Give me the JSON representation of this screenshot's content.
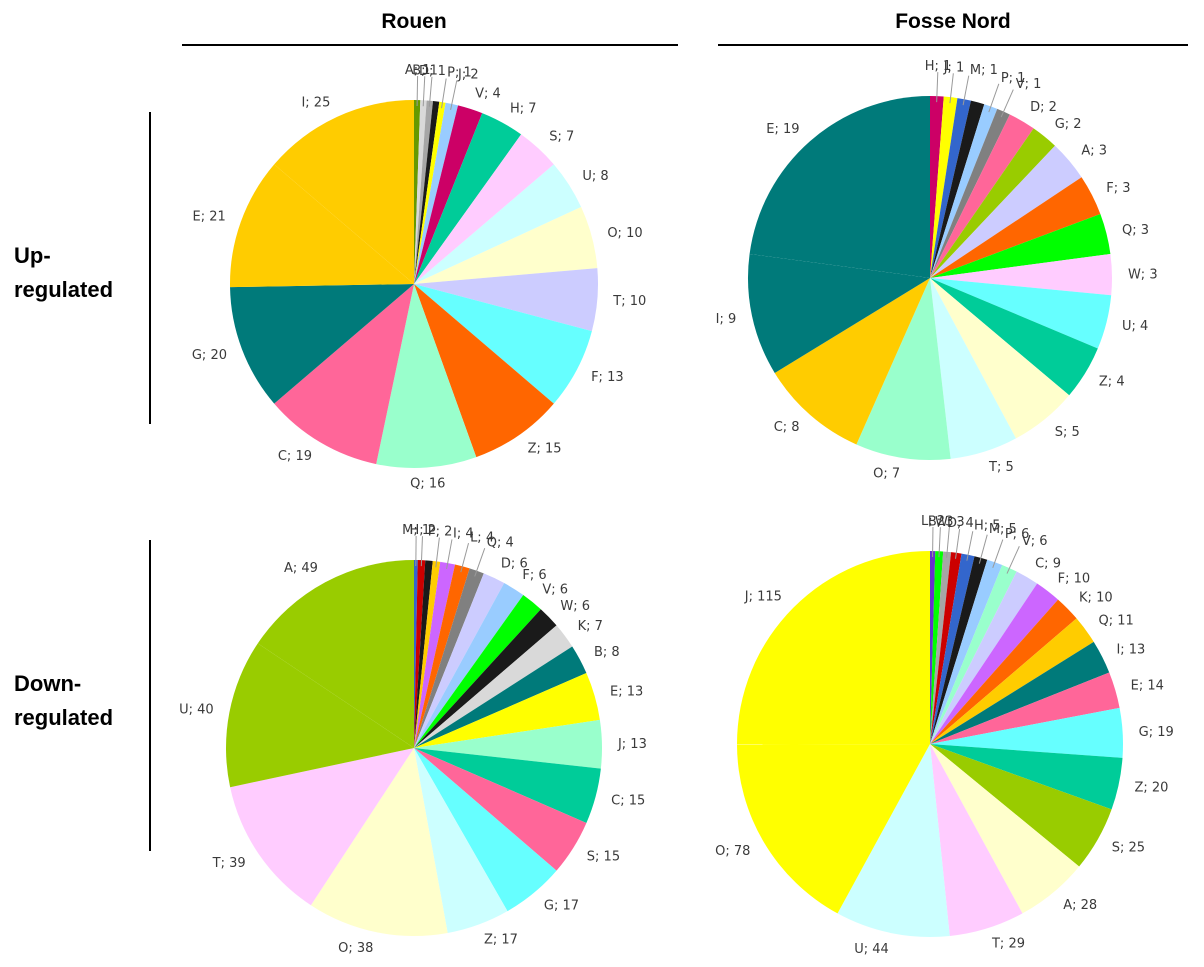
{
  "columns": {
    "left": "Rouen",
    "right": "Fosse Nord"
  },
  "rows": {
    "up_line1": "Up-",
    "up_line2": "regulated",
    "down_line1": "Down-",
    "down_line2": "regulated"
  },
  "colors": {
    "A": "#99CC00",
    "B": "#D9D9D9",
    "C": "#99FFCC",
    "D": "#A6A6A6",
    "E": "#007A7A",
    "F": "#CCCCFF",
    "G": "#FF6699",
    "H": "#CC0000",
    "I": "#FFCC00",
    "J": "#FFFF00",
    "K": "#CC66FF",
    "L": "#6633CC",
    "M": "#3366CC",
    "O": "#CCFFFF",
    "P": "#99CCFF",
    "Q": "#FF6600",
    "S": "#00CC99",
    "T": "#FFFFCC",
    "U": "#FFCCFF",
    "V": "#808080",
    "W": "#00FF00",
    "Z": "#66FFFF",
    "black": "#1A1A1A",
    "olive": "#669900",
    "magenta": "#CC0066"
  },
  "chart_data": [
    {
      "type": "pie",
      "title": "Rouen",
      "row": "Up-regulated",
      "slices": [
        {
          "label": "A; 1",
          "value": 1,
          "color": "olive"
        },
        {
          "label": "B; 1",
          "value": 1,
          "color": "B"
        },
        {
          "label": "D; 1",
          "value": 1,
          "color": "D"
        },
        {
          "label": "",
          "value": 1,
          "color": "black"
        },
        {
          "label": "P; 1",
          "value": 1,
          "color": "J"
        },
        {
          "label": "J; 2",
          "value": 2,
          "color": "P"
        },
        {
          "label": "V; 4",
          "value": 4,
          "color": "magenta"
        },
        {
          "label": "H; 7",
          "value": 7,
          "color": "S"
        },
        {
          "label": "S; 7",
          "value": 7,
          "color": "U"
        },
        {
          "label": "U; 8",
          "value": 8,
          "color": "O"
        },
        {
          "label": "O; 10",
          "value": 10,
          "color": "T"
        },
        {
          "label": "T; 10",
          "value": 10,
          "color": "F"
        },
        {
          "label": "F; 13",
          "value": 13,
          "color": "Z"
        },
        {
          "label": "Z; 15",
          "value": 15,
          "color": "Q"
        },
        {
          "label": "Q; 16",
          "value": 16,
          "color": "C"
        },
        {
          "label": "C; 19",
          "value": 19,
          "color": "G"
        },
        {
          "label": "G; 20",
          "value": 20,
          "color": "E"
        },
        {
          "label": "E; 21",
          "value": 21,
          "color": "I"
        },
        {
          "label": "I; 25",
          "value": 25,
          "color": "I"
        }
      ]
    },
    {
      "type": "pie",
      "title": "Fosse Nord",
      "row": "Up-regulated",
      "slices": [
        {
          "label": "H; 1",
          "value": 1,
          "color": "magenta"
        },
        {
          "label": "J; 1",
          "value": 1,
          "color": "J"
        },
        {
          "label": "M; 1",
          "value": 1,
          "color": "M"
        },
        {
          "label": "",
          "value": 1,
          "color": "black"
        },
        {
          "label": "P; 1",
          "value": 1,
          "color": "P"
        },
        {
          "label": "V; 1",
          "value": 1,
          "color": "V"
        },
        {
          "label": "D; 2",
          "value": 2,
          "color": "G"
        },
        {
          "label": "G; 2",
          "value": 2,
          "color": "A"
        },
        {
          "label": "A; 3",
          "value": 3,
          "color": "F"
        },
        {
          "label": "F; 3",
          "value": 3,
          "color": "Q"
        },
        {
          "label": "Q; 3",
          "value": 3,
          "color": "W"
        },
        {
          "label": "W; 3",
          "value": 3,
          "color": "U"
        },
        {
          "label": "U; 4",
          "value": 4,
          "color": "Z"
        },
        {
          "label": "Z; 4",
          "value": 4,
          "color": "S"
        },
        {
          "label": "S; 5",
          "value": 5,
          "color": "T"
        },
        {
          "label": "T; 5",
          "value": 5,
          "color": "O"
        },
        {
          "label": "O; 7",
          "value": 7,
          "color": "C"
        },
        {
          "label": "C; 8",
          "value": 8,
          "color": "I"
        },
        {
          "label": "I; 9",
          "value": 9,
          "color": "E"
        },
        {
          "label": "E; 19",
          "value": 19,
          "color": "E"
        }
      ]
    },
    {
      "type": "pie",
      "title": "Rouen",
      "row": "Down-regulated",
      "slices": [
        {
          "label": "M; 1",
          "value": 1,
          "color": "M"
        },
        {
          "label": "H; 2",
          "value": 2,
          "color": "H"
        },
        {
          "label": "",
          "value": 2,
          "color": "black"
        },
        {
          "label": "P; 2",
          "value": 2,
          "color": "I"
        },
        {
          "label": "I; 4",
          "value": 4,
          "color": "K"
        },
        {
          "label": "L; 4",
          "value": 4,
          "color": "Q"
        },
        {
          "label": "Q; 4",
          "value": 4,
          "color": "V"
        },
        {
          "label": "D; 6",
          "value": 6,
          "color": "F"
        },
        {
          "label": "F; 6",
          "value": 6,
          "color": "P"
        },
        {
          "label": "V; 6",
          "value": 6,
          "color": "W"
        },
        {
          "label": "W; 6",
          "value": 6,
          "color": "black"
        },
        {
          "label": "K; 7",
          "value": 7,
          "color": "B"
        },
        {
          "label": "B; 8",
          "value": 8,
          "color": "E"
        },
        {
          "label": "E; 13",
          "value": 13,
          "color": "J"
        },
        {
          "label": "J; 13",
          "value": 13,
          "color": "C"
        },
        {
          "label": "C; 15",
          "value": 15,
          "color": "S"
        },
        {
          "label": "S; 15",
          "value": 15,
          "color": "G"
        },
        {
          "label": "G; 17",
          "value": 17,
          "color": "Z"
        },
        {
          "label": "Z; 17",
          "value": 17,
          "color": "O"
        },
        {
          "label": "O; 38",
          "value": 38,
          "color": "T"
        },
        {
          "label": "T; 39",
          "value": 39,
          "color": "U"
        },
        {
          "label": "U; 40",
          "value": 40,
          "color": "A"
        },
        {
          "label": "A; 49",
          "value": 49,
          "color": "A"
        }
      ]
    },
    {
      "type": "pie",
      "title": "Fosse Nord",
      "row": "Down-regulated",
      "slices": [
        {
          "label": "L; 2",
          "value": 2,
          "color": "L"
        },
        {
          "label": "B; 3",
          "value": 3,
          "color": "W"
        },
        {
          "label": "W; 3",
          "value": 3,
          "color": "D"
        },
        {
          "label": "D; 4",
          "value": 4,
          "color": "H"
        },
        {
          "label": "H; 5",
          "value": 5,
          "color": "M"
        },
        {
          "label": "M; 5",
          "value": 5,
          "color": "black"
        },
        {
          "label": "P; 6",
          "value": 6,
          "color": "P"
        },
        {
          "label": "V; 6",
          "value": 6,
          "color": "C"
        },
        {
          "label": "C; 9",
          "value": 9,
          "color": "F"
        },
        {
          "label": "F; 10",
          "value": 10,
          "color": "K"
        },
        {
          "label": "K; 10",
          "value": 10,
          "color": "Q"
        },
        {
          "label": "Q; 11",
          "value": 11,
          "color": "I"
        },
        {
          "label": "I; 13",
          "value": 13,
          "color": "E"
        },
        {
          "label": "E; 14",
          "value": 14,
          "color": "G"
        },
        {
          "label": "G; 19",
          "value": 19,
          "color": "Z"
        },
        {
          "label": "Z; 20",
          "value": 20,
          "color": "S"
        },
        {
          "label": "S; 25",
          "value": 25,
          "color": "A"
        },
        {
          "label": "A; 28",
          "value": 28,
          "color": "T"
        },
        {
          "label": "T; 29",
          "value": 29,
          "color": "U"
        },
        {
          "label": "U; 44",
          "value": 44,
          "color": "O"
        },
        {
          "label": "O; 78",
          "value": 78,
          "color": "J"
        },
        {
          "label": "J; 115",
          "value": 115,
          "color": "J"
        }
      ]
    }
  ]
}
